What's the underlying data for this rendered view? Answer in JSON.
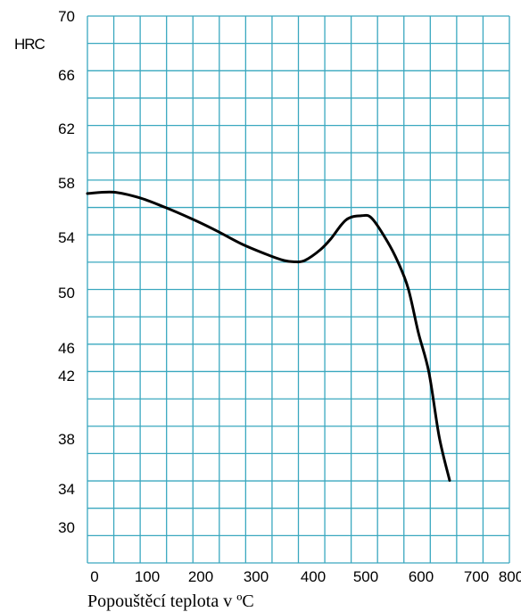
{
  "chart_data": {
    "type": "line",
    "ylabel": "HRC",
    "xlabel": "Popouštěcí teplota v  ºC",
    "x_ticks": [
      "0",
      "100",
      "200",
      "300",
      "400",
      "500",
      "600",
      "700",
      "800"
    ],
    "y_ticks": [
      "70",
      "66",
      "62",
      "58",
      "54",
      "50",
      "46",
      "42",
      "38",
      "34",
      "30"
    ],
    "xlim": [
      0,
      800
    ],
    "grid": true,
    "colors": {
      "grid": "#3aa8bf",
      "line": "#000000"
    },
    "series": [
      {
        "x": [
          0,
          50,
          100,
          150,
          200,
          250,
          300,
          350,
          380,
          400,
          420,
          450,
          470,
          500,
          530,
          550,
          580,
          600,
          620,
          640,
          660,
          680,
          700
        ],
        "y": [
          57.1,
          57.2,
          56.8,
          56.1,
          55.3,
          54.4,
          53.4,
          52.6,
          52.2,
          52.1,
          52.2,
          53.0,
          53.8,
          55.2,
          55.5,
          55.3,
          53.6,
          52.1,
          50.1,
          47.0,
          42.2,
          38.1,
          34.2
        ]
      }
    ]
  }
}
